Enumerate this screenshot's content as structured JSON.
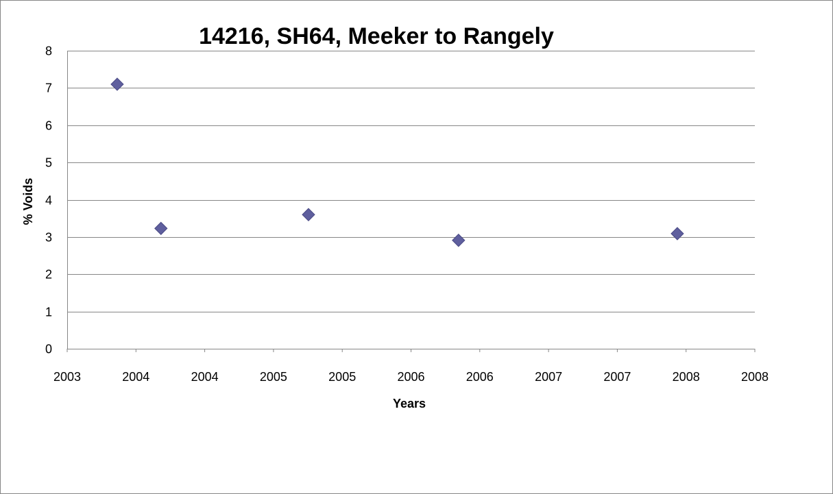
{
  "chart_data": {
    "type": "scatter",
    "title": "14216, SH64, Meeker to Rangely",
    "xlabel": "Years",
    "ylabel": "% Voids",
    "x_tick_labels": [
      "2003",
      "2004",
      "2004",
      "2005",
      "2005",
      "2006",
      "2006",
      "2007",
      "2007",
      "2008",
      "2008"
    ],
    "xlim": [
      2003.0,
      2008.5
    ],
    "ylim": [
      0,
      8
    ],
    "y_ticks": [
      0,
      1,
      2,
      3,
      4,
      5,
      6,
      7,
      8
    ],
    "grid": "horizontal",
    "legend": "none",
    "marker": "diamond",
    "marker_color": "#5F5F9E",
    "series": [
      {
        "x": [
          2003.4,
          2003.75,
          2004.93,
          2006.13,
          2007.88
        ],
        "y": [
          7.1,
          3.23,
          3.6,
          2.91,
          3.09
        ]
      }
    ]
  }
}
